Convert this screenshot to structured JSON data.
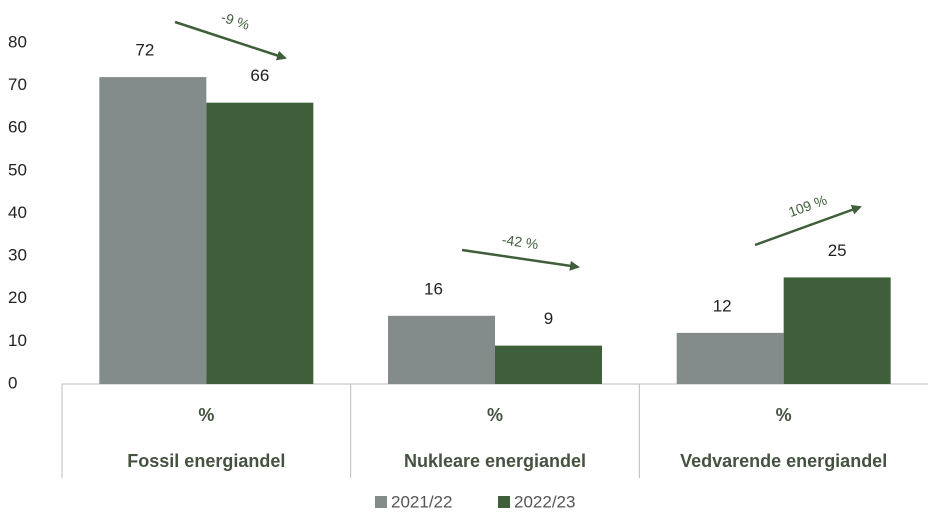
{
  "chart_data": {
    "type": "bar",
    "categories": [
      "Fossil energiandel",
      "Nukleare energiandel",
      "Vedvarende energiandel"
    ],
    "category_units": [
      "%",
      "%",
      "%"
    ],
    "series": [
      {
        "name": "2021/22",
        "color": "#838b8b",
        "values": [
          72,
          16,
          12
        ]
      },
      {
        "name": "2022/23",
        "color": "#3f5e3a",
        "values": [
          66,
          9,
          25
        ]
      }
    ],
    "annotations": [
      "-9 %",
      "-42 %",
      "109 %"
    ],
    "annotation_color": "#3f5e3a",
    "ylim": [
      0,
      80
    ],
    "yticks": [
      0,
      10,
      20,
      30,
      40,
      50,
      60,
      70,
      80
    ],
    "grid": false,
    "legend": "bottom"
  }
}
